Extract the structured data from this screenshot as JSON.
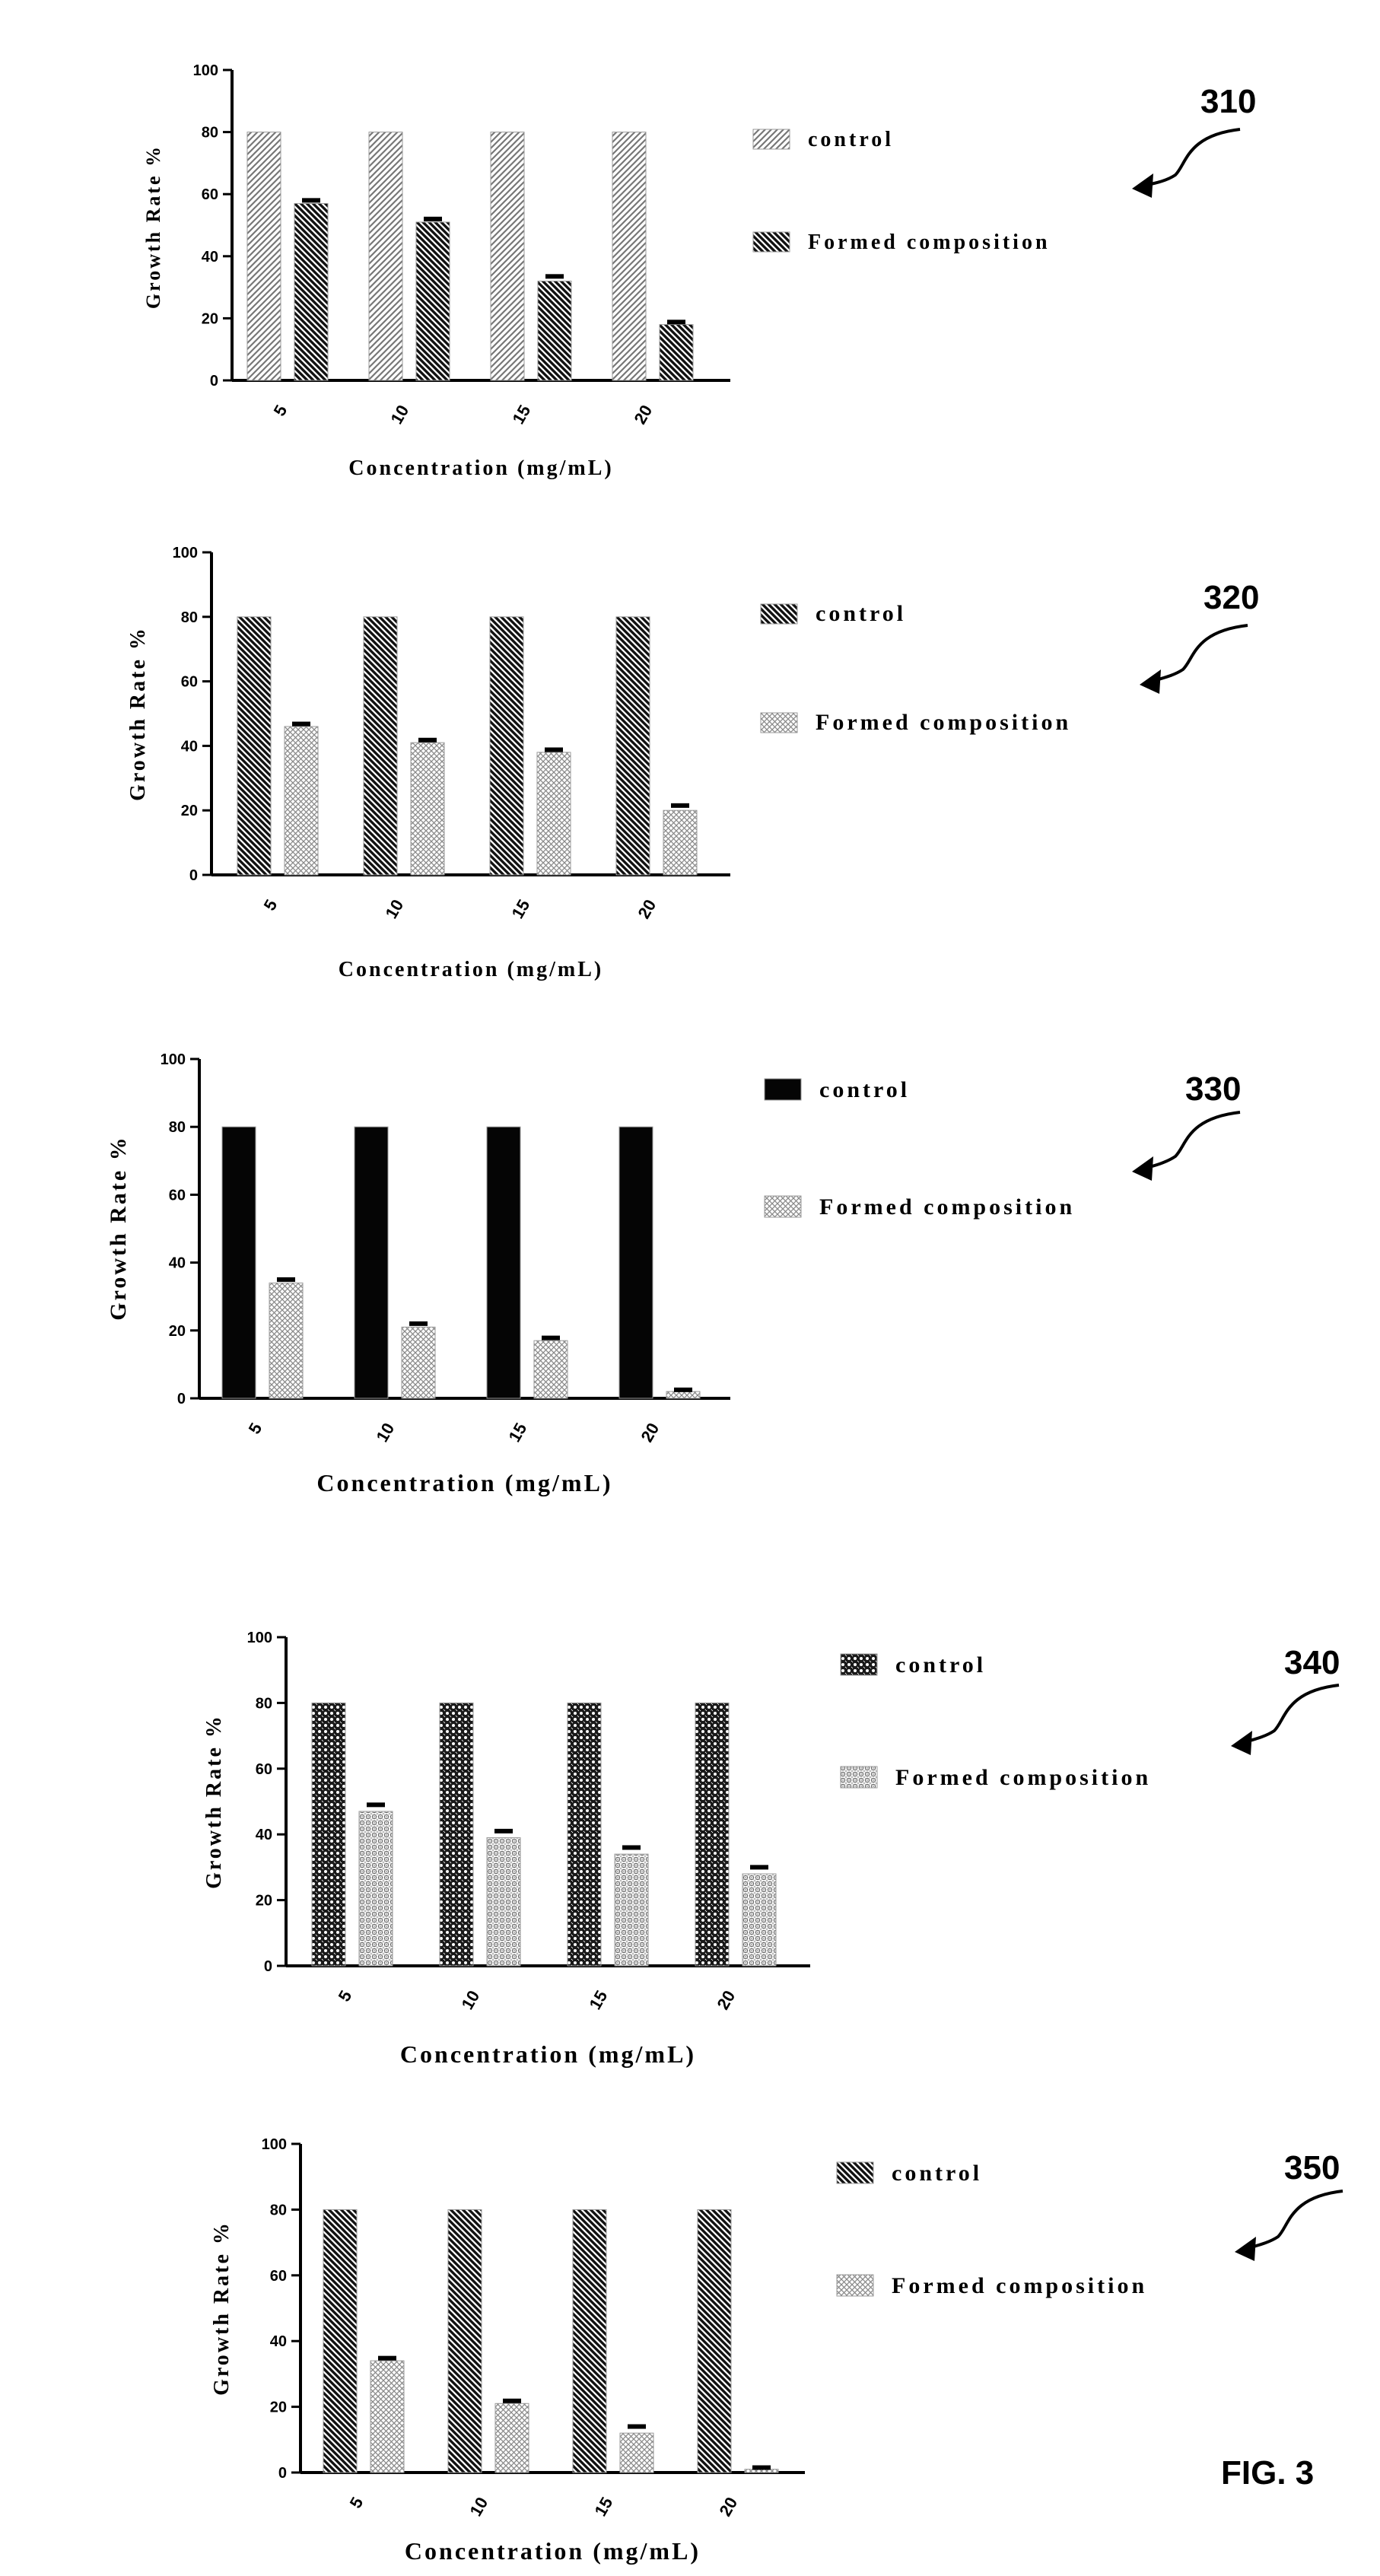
{
  "figure_label": "FIG. 3",
  "chart_data": [
    {
      "type": "bar",
      "ref": "310",
      "categories": [
        "5",
        "10",
        "15",
        "20"
      ],
      "xlabel": "Concentration (mg/mL)",
      "ylabel": "Growth Rate %",
      "ylim": [
        0,
        100
      ],
      "yticks": [
        0,
        20,
        40,
        60,
        80,
        100
      ],
      "grid": false,
      "legend": "right",
      "series": [
        {
          "name": "control",
          "values": [
            80,
            80,
            80,
            80
          ],
          "error": [
            0,
            0,
            0,
            0
          ]
        },
        {
          "name": "Formed composition",
          "values": [
            57,
            51,
            32,
            18
          ],
          "error": [
            1,
            1,
            1.5,
            0.8
          ]
        }
      ],
      "colors": [
        "#bbbbbb",
        "#555555"
      ],
      "patterns": [
        "light-diagonal",
        "dark-diagonal"
      ]
    },
    {
      "type": "bar",
      "ref": "320",
      "categories": [
        "5",
        "10",
        "15",
        "20"
      ],
      "xlabel": "Concentration (mg/mL)",
      "ylabel": "Growth Rate %",
      "ylim": [
        0,
        100
      ],
      "yticks": [
        0,
        20,
        40,
        60,
        80,
        100
      ],
      "grid": false,
      "legend": "right",
      "series": [
        {
          "name": "control",
          "values": [
            80,
            80,
            80,
            80
          ],
          "error": [
            0,
            0,
            0,
            0
          ]
        },
        {
          "name": "Formed composition",
          "values": [
            46,
            41,
            38,
            20
          ],
          "error": [
            0.8,
            0.8,
            0.8,
            1.5
          ]
        }
      ],
      "colors": [
        "#555555",
        "#aaaaaa"
      ],
      "patterns": [
        "dark-diagonal",
        "light-crosshatch"
      ]
    },
    {
      "type": "bar",
      "ref": "330",
      "categories": [
        "5",
        "10",
        "15",
        "20"
      ],
      "xlabel": "Concentration (mg/mL)",
      "ylabel": "Growth Rate %",
      "ylim": [
        0,
        100
      ],
      "yticks": [
        0,
        20,
        40,
        60,
        80,
        100
      ],
      "grid": false,
      "legend": "right",
      "series": [
        {
          "name": "control",
          "values": [
            80,
            80,
            80,
            80
          ],
          "error": [
            0,
            0,
            0,
            0
          ]
        },
        {
          "name": "Formed composition",
          "values": [
            34,
            21,
            17,
            2
          ],
          "error": [
            1,
            1,
            0.8,
            0.5
          ]
        }
      ],
      "colors": [
        "#000000",
        "#aaaaaa"
      ],
      "patterns": [
        "solid",
        "light-crosshatch"
      ]
    },
    {
      "type": "bar",
      "ref": "340",
      "categories": [
        "5",
        "10",
        "15",
        "20"
      ],
      "xlabel": "Concentration (mg/mL)",
      "ylabel": "Growth Rate %",
      "ylim": [
        0,
        100
      ],
      "yticks": [
        0,
        20,
        40,
        60,
        80,
        100
      ],
      "grid": false,
      "legend": "right",
      "series": [
        {
          "name": "control",
          "values": [
            80,
            80,
            80,
            80
          ],
          "error": [
            0,
            0,
            0,
            0
          ]
        },
        {
          "name": "Formed composition",
          "values": [
            47,
            39,
            34,
            28
          ],
          "error": [
            2,
            2,
            2,
            2
          ]
        }
      ],
      "colors": [
        "#222222",
        "#999999"
      ],
      "patterns": [
        "dark-checker",
        "light-checker"
      ]
    },
    {
      "type": "bar",
      "ref": "350",
      "categories": [
        "5",
        "10",
        "15",
        "20"
      ],
      "xlabel": "Concentration (mg/mL)",
      "ylabel": "Growth Rate %",
      "ylim": [
        0,
        100
      ],
      "yticks": [
        0,
        20,
        40,
        60,
        80,
        100
      ],
      "grid": false,
      "legend": "right",
      "series": [
        {
          "name": "control",
          "values": [
            80,
            80,
            80,
            80
          ],
          "error": [
            0,
            0,
            0,
            0
          ]
        },
        {
          "name": "Formed composition",
          "values": [
            34,
            21,
            12,
            1
          ],
          "error": [
            0.8,
            0.8,
            2,
            0.5
          ]
        }
      ],
      "colors": [
        "#222222",
        "#aaaaaa"
      ],
      "patterns": [
        "dark-diagonal",
        "light-crosshatch"
      ]
    }
  ]
}
